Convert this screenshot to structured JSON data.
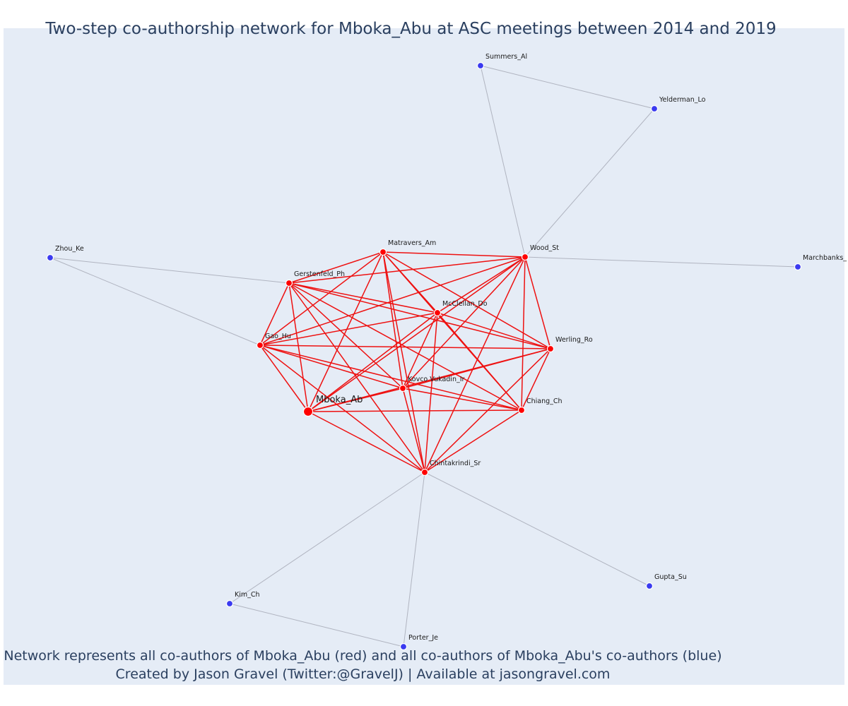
{
  "title": "Two-step co-authorship network for Mboka_Abu at ASC meetings between 2014 and 2019",
  "caption_line1": "Network represents all co-authors of Mboka_Abu (red) and all co-authors of Mboka_Abu's co-authors (blue)",
  "caption_line2": "Created by Jason Gravel (Twitter:@GravelJ) | Available at jasongravel.com",
  "colors": {
    "first_degree": "#ff0000",
    "second_degree": "#3a3af0",
    "red_edge": "#ee1111",
    "grey_edge": "#b0b4c0",
    "background": "#e5ecf6"
  },
  "network": {
    "focal": "Mboka_Abu",
    "nodes": [
      {
        "id": "Mboka_Ab",
        "label": "Mboka_Ab",
        "group": "focal"
      },
      {
        "id": "Matravers_Am",
        "label": "Matravers_Am",
        "group": "red"
      },
      {
        "id": "Wood_St",
        "label": "Wood_St",
        "group": "red"
      },
      {
        "id": "Gerstenfeld_Ph",
        "label": "Gerstenfeld_Ph",
        "group": "red"
      },
      {
        "id": "McClellan_Do",
        "label": "McClellan_Do",
        "group": "red"
      },
      {
        "id": "Gao_Hu",
        "label": "Gao_Hu",
        "group": "red"
      },
      {
        "id": "Werling_Ro",
        "label": "Werling_Ro",
        "group": "red"
      },
      {
        "id": "Kovco_Vukadin_Ir",
        "label": "Kovco Vukadin_Ir",
        "group": "red"
      },
      {
        "id": "Chiang_Ch",
        "label": "Chiang_Ch",
        "group": "red"
      },
      {
        "id": "Chintakrindi_Sr",
        "label": "Chintakrindi_Sr",
        "group": "red"
      },
      {
        "id": "Summers_Al",
        "label": "Summers_Al",
        "group": "blue"
      },
      {
        "id": "Yelderman_Lo",
        "label": "Yelderman_Lo",
        "group": "blue"
      },
      {
        "id": "Zhou_Ke",
        "label": "Zhou_Ke",
        "group": "blue"
      },
      {
        "id": "Marchbanks",
        "label": "Marchbanks_",
        "group": "blue"
      },
      {
        "id": "Kim_Ch",
        "label": "Kim_Ch",
        "group": "blue"
      },
      {
        "id": "Porter_Je",
        "label": "Porter_Je",
        "group": "blue"
      },
      {
        "id": "Gupta_Su",
        "label": "Gupta_Su",
        "group": "blue"
      }
    ],
    "grey_edges": [
      [
        "Summers_Al",
        "Yelderman_Lo"
      ],
      [
        "Summers_Al",
        "Wood_St"
      ],
      [
        "Yelderman_Lo",
        "Wood_St"
      ],
      [
        "Wood_St",
        "Marchbanks"
      ],
      [
        "Zhou_Ke",
        "Gerstenfeld_Ph"
      ],
      [
        "Zhou_Ke",
        "Gao_Hu"
      ],
      [
        "Chintakrindi_Sr",
        "Kim_Ch"
      ],
      [
        "Chintakrindi_Sr",
        "Porter_Je"
      ],
      [
        "Chintakrindi_Sr",
        "Gupta_Su"
      ],
      [
        "Kim_Ch",
        "Porter_Je"
      ]
    ]
  }
}
